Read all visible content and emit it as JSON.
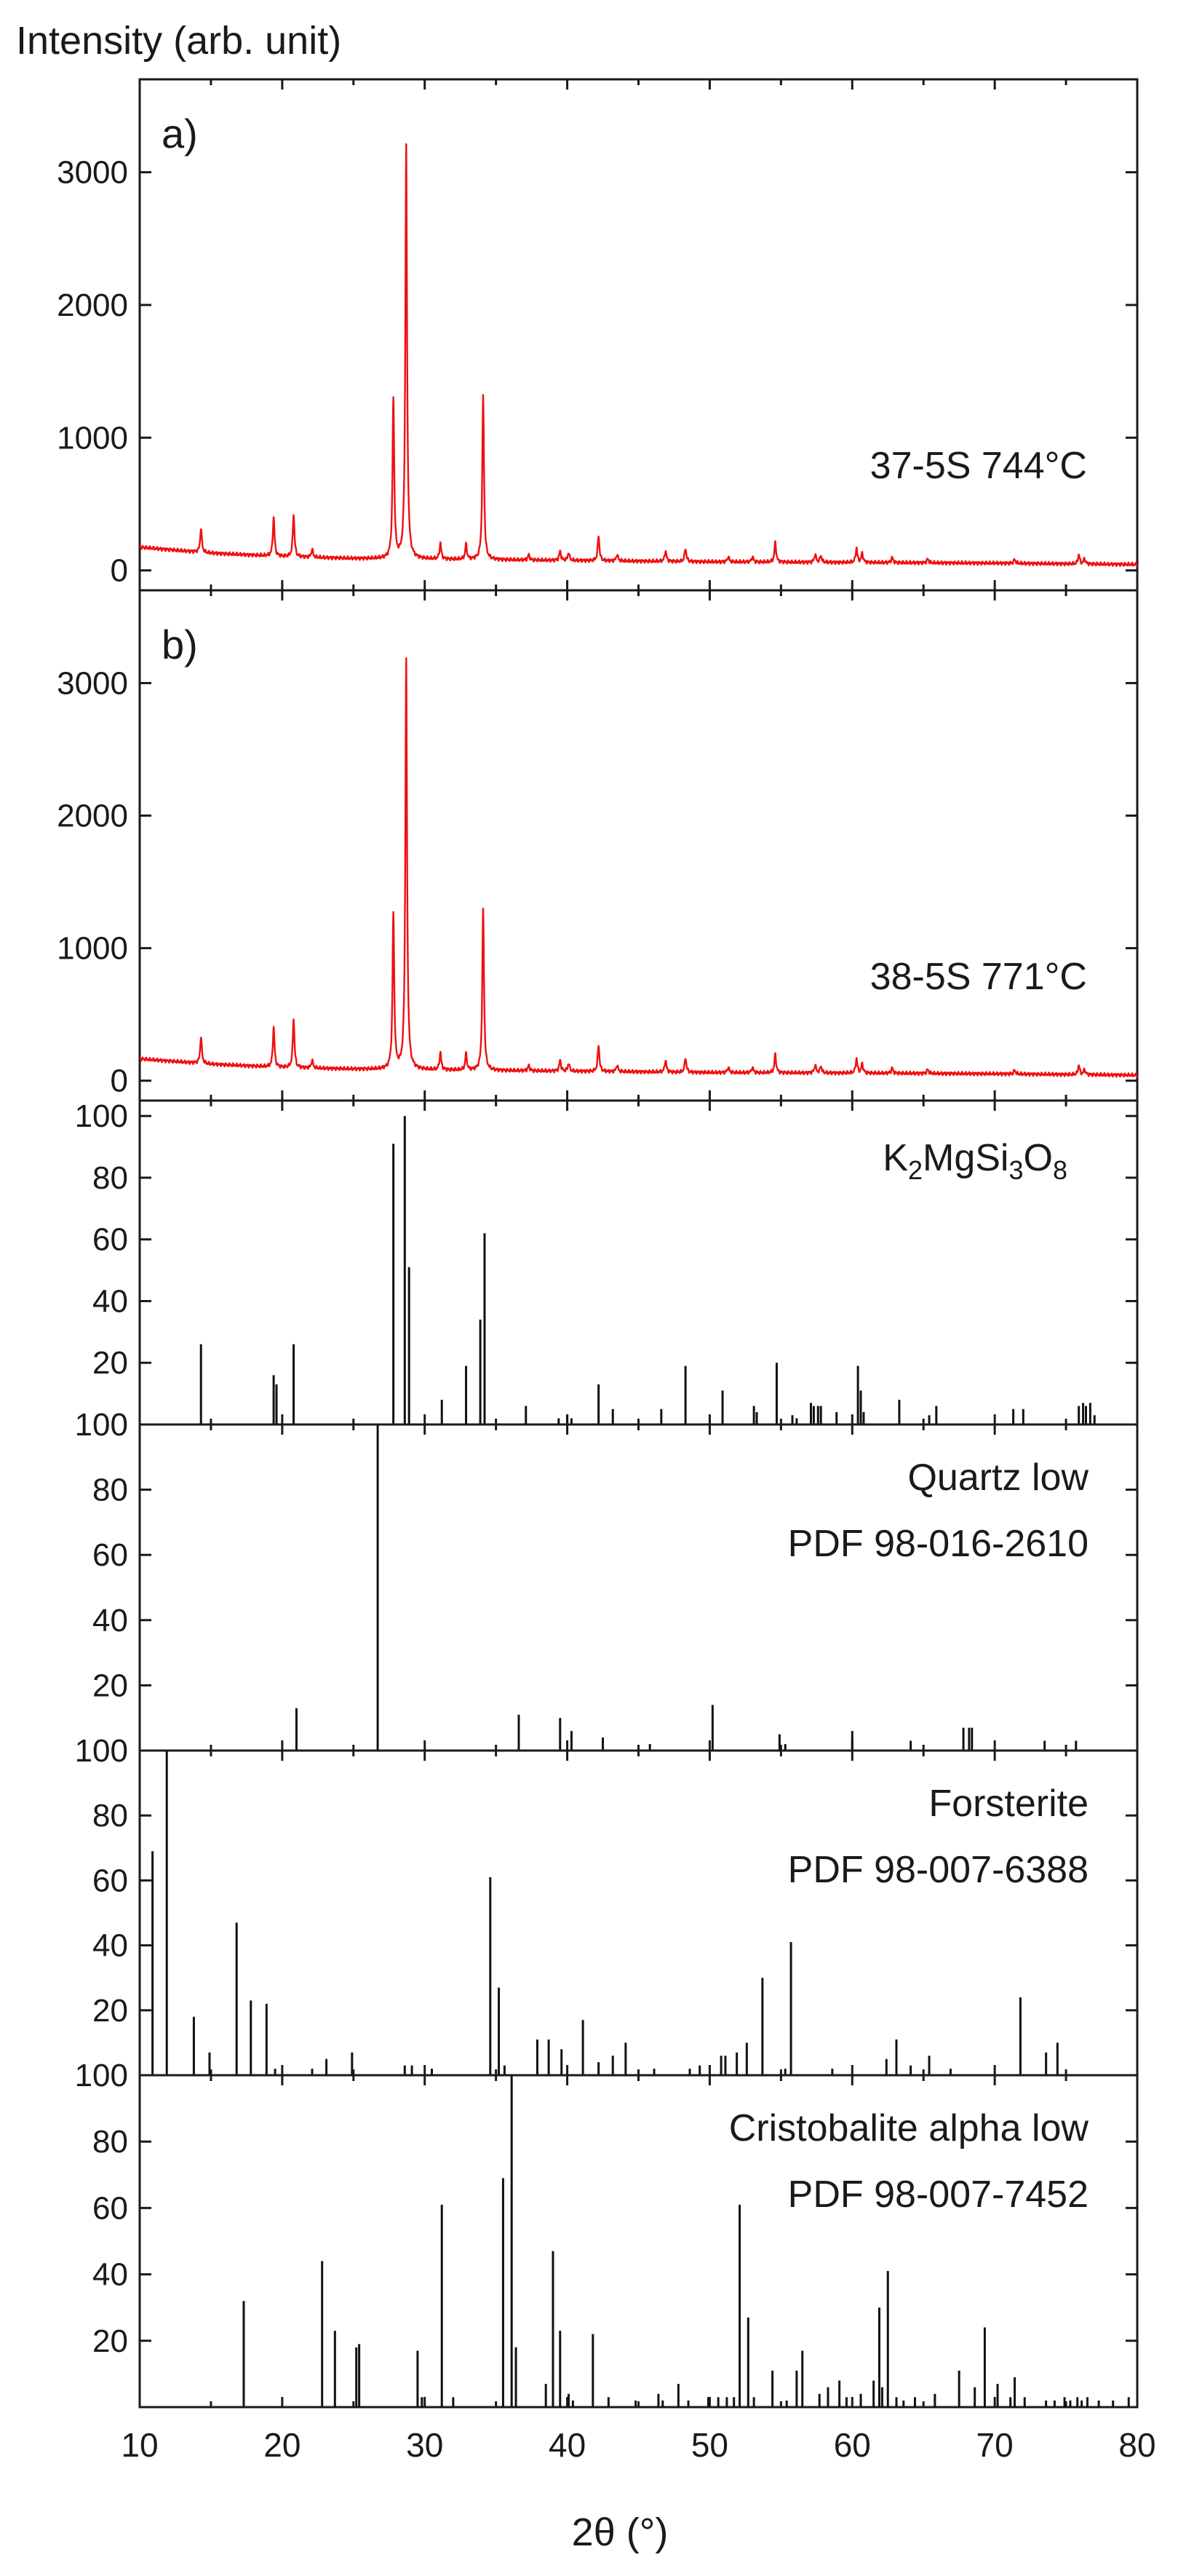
{
  "figure": {
    "ylabel": "Intensity (arb. unit)",
    "xlabel": "2θ (°)",
    "xlim": [
      10,
      80
    ],
    "xticks": [
      10,
      20,
      30,
      40,
      50,
      60,
      70,
      80
    ]
  },
  "chart_data": [
    {
      "type": "line",
      "panel_label": "a)",
      "annotation": "37-5S 744°C",
      "color": "#ee1111",
      "ylim": [
        -150,
        3700
      ],
      "yticks": [
        0,
        1000,
        2000,
        3000
      ],
      "baseline": [
        [
          10,
          175
        ],
        [
          15,
          130
        ],
        [
          20,
          105
        ],
        [
          25,
          90
        ],
        [
          30,
          85
        ],
        [
          40,
          75
        ],
        [
          50,
          65
        ],
        [
          60,
          60
        ],
        [
          70,
          55
        ],
        [
          80,
          45
        ]
      ],
      "peaks": [
        [
          14.3,
          180
        ],
        [
          19.4,
          290
        ],
        [
          20.8,
          320
        ],
        [
          22.1,
          60
        ],
        [
          27.8,
          1200
        ],
        [
          28.7,
          3120
        ],
        [
          31.1,
          120
        ],
        [
          32.9,
          110
        ],
        [
          34.1,
          1230
        ],
        [
          37.3,
          40
        ],
        [
          39.5,
          70
        ],
        [
          40.1,
          60
        ],
        [
          42.2,
          190
        ],
        [
          43.5,
          50
        ],
        [
          46.9,
          80
        ],
        [
          48.3,
          100
        ],
        [
          51.3,
          40
        ],
        [
          53.0,
          40
        ],
        [
          54.6,
          150
        ],
        [
          57.4,
          60
        ],
        [
          57.8,
          50
        ],
        [
          60.3,
          110
        ],
        [
          60.7,
          70
        ],
        [
          62.8,
          40
        ],
        [
          65.3,
          30
        ],
        [
          71.4,
          30
        ],
        [
          75.9,
          70
        ],
        [
          76.3,
          40
        ]
      ]
    },
    {
      "type": "line",
      "panel_label": "b)",
      "annotation": "38-5S 771°C",
      "color": "#ee1111",
      "ylim": [
        -150,
        3700
      ],
      "yticks": [
        0,
        1000,
        2000,
        3000
      ],
      "baseline": [
        [
          10,
          165
        ],
        [
          15,
          125
        ],
        [
          20,
          100
        ],
        [
          25,
          88
        ],
        [
          30,
          82
        ],
        [
          40,
          72
        ],
        [
          50,
          62
        ],
        [
          60,
          58
        ],
        [
          70,
          52
        ],
        [
          80,
          42
        ]
      ],
      "peaks": [
        [
          14.3,
          200
        ],
        [
          19.4,
          300
        ],
        [
          20.8,
          370
        ],
        [
          22.1,
          60
        ],
        [
          27.8,
          1170
        ],
        [
          28.7,
          3100
        ],
        [
          31.1,
          130
        ],
        [
          32.9,
          120
        ],
        [
          34.1,
          1210
        ],
        [
          37.3,
          40
        ],
        [
          39.5,
          80
        ],
        [
          40.1,
          60
        ],
        [
          42.2,
          200
        ],
        [
          43.5,
          50
        ],
        [
          46.9,
          90
        ],
        [
          48.3,
          110
        ],
        [
          51.3,
          40
        ],
        [
          53.0,
          40
        ],
        [
          54.6,
          140
        ],
        [
          57.4,
          60
        ],
        [
          57.8,
          50
        ],
        [
          60.3,
          110
        ],
        [
          60.7,
          70
        ],
        [
          62.8,
          40
        ],
        [
          65.3,
          30
        ],
        [
          71.4,
          30
        ],
        [
          75.9,
          70
        ],
        [
          76.3,
          40
        ]
      ]
    },
    {
      "type": "bar",
      "annotation": "K2MgSi3O8",
      "annotation_parts": [
        "K",
        "2",
        "MgSi",
        "3",
        "O",
        "8"
      ],
      "ylim": [
        0,
        105
      ],
      "yticks": [
        20,
        40,
        60,
        80,
        100
      ],
      "x": [
        14.3,
        19.4,
        19.6,
        20.8,
        27.8,
        28.6,
        28.9,
        31.2,
        32.9,
        33.9,
        34.2,
        37.1,
        39.4,
        40.0,
        40.3,
        42.2,
        43.2,
        46.6,
        48.3,
        50.9,
        53.1,
        53.3,
        54.7,
        55.8,
        56.1,
        57.1,
        57.3,
        57.6,
        57.8,
        58.9,
        60.4,
        60.6,
        60.8,
        63.3,
        65.4,
        65.9,
        71.3,
        72.0,
        75.9,
        76.2,
        76.4,
        76.7,
        77.0
      ],
      "values": [
        26,
        16,
        13,
        26,
        91,
        100,
        51,
        8,
        19,
        34,
        62,
        6,
        2,
        3,
        2,
        13,
        5,
        5,
        19,
        11,
        6,
        4,
        20,
        3,
        2,
        7,
        6,
        6,
        6,
        4,
        19,
        11,
        4,
        8,
        3,
        6,
        5,
        5,
        6,
        7,
        6,
        7,
        3
      ]
    },
    {
      "type": "bar",
      "annotation": [
        "Quartz low",
        "PDF 98-016-2610"
      ],
      "ylim": [
        0,
        100
      ],
      "yticks": [
        20,
        40,
        60,
        80,
        100
      ],
      "x": [
        21.0,
        26.7,
        36.6,
        39.5,
        40.3,
        42.5,
        45.8,
        50.2,
        54.9,
        55.3,
        60.0,
        64.1,
        67.8,
        68.2,
        68.4,
        73.5,
        75.7
      ],
      "values": [
        13,
        100,
        11,
        10,
        6,
        4,
        2,
        14,
        5,
        2,
        6,
        3,
        7,
        7,
        7,
        3,
        3
      ]
    },
    {
      "type": "bar",
      "annotation": [
        "Forsterite",
        "PDF 98-007-6388"
      ],
      "ylim": [
        0,
        100
      ],
      "yticks": [
        20,
        40,
        60,
        80,
        100
      ],
      "x": [
        10.9,
        11.9,
        13.8,
        14.9,
        16.8,
        17.8,
        18.9,
        19.5,
        22.1,
        23.1,
        24.9,
        28.6,
        29.1,
        30.5,
        34.6,
        35.2,
        35.6,
        37.9,
        38.7,
        39.6,
        41.1,
        42.2,
        43.2,
        44.1,
        46.1,
        48.6,
        49.3,
        50.8,
        51.1,
        51.9,
        52.6,
        53.7,
        55.3,
        55.7,
        58.6,
        62.4,
        63.1,
        64.1,
        65.4,
        66.9,
        71.8,
        73.6,
        74.4
      ],
      "values": [
        69,
        100,
        18,
        7,
        47,
        23,
        22,
        2,
        2,
        5,
        7,
        3,
        3,
        2,
        61,
        27,
        3,
        11,
        11,
        8,
        17,
        4,
        6,
        10,
        2,
        2,
        3,
        6,
        6,
        7,
        10,
        30,
        2,
        41,
        2,
        5,
        11,
        3,
        6,
        2,
        24,
        7,
        10
      ]
    },
    {
      "type": "bar",
      "annotation": [
        "Cristobalite alpha low",
        "PDF 98-007-7452"
      ],
      "ylim": [
        0,
        100
      ],
      "yticks": [
        20,
        40,
        60,
        80,
        100
      ],
      "x": [
        17.3,
        22.8,
        23.7,
        25.2,
        25.4,
        29.5,
        29.8,
        31.2,
        32.0,
        35.5,
        36.1,
        36.4,
        38.5,
        39.0,
        39.5,
        40.1,
        40.4,
        41.8,
        42.9,
        44.8,
        46.4,
        46.7,
        47.8,
        48.5,
        49.9,
        50.6,
        51.2,
        51.7,
        52.1,
        52.7,
        53.1,
        54.4,
        55.4,
        56.1,
        56.5,
        57.7,
        58.3,
        59.1,
        59.6,
        60.6,
        61.5,
        61.9,
        62.1,
        62.5,
        63.1,
        63.6,
        64.4,
        65.8,
        67.5,
        68.6,
        69.3,
        70.2,
        71.1,
        71.4,
        72.1,
        73.6,
        74.2,
        74.9,
        75.3,
        75.8,
        76.1,
        76.5,
        77.3,
        78.3,
        79.4
      ],
      "values": [
        32,
        44,
        23,
        18,
        19,
        17,
        3,
        61,
        3,
        69,
        100,
        18,
        7,
        47,
        23,
        4,
        2,
        22,
        3,
        2,
        4,
        2,
        7,
        2,
        3,
        3,
        3,
        3,
        61,
        27,
        3,
        11,
        2,
        11,
        17,
        4,
        6,
        8,
        3,
        4,
        8,
        30,
        6,
        41,
        3,
        2,
        3,
        4,
        11,
        6,
        24,
        7,
        3,
        9,
        3,
        2,
        2,
        3,
        2,
        3,
        2,
        3,
        2,
        2,
        3
      ]
    }
  ]
}
